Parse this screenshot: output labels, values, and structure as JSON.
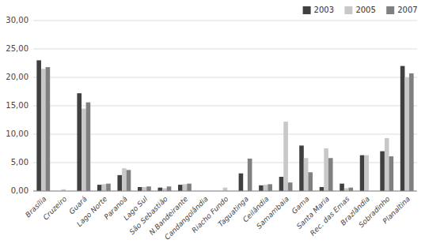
{
  "chart_data": {
    "type": "bar",
    "categories": [
      "Brasília",
      "Cruzeiro",
      "Guará",
      "Lago Norte",
      "Paranoá",
      "Lago Sul",
      "São Sebastião",
      "N.Bandeirante",
      "Candangolândia",
      "Riacho Fundo",
      "Taguatinga",
      "Ceilândia",
      "Samambaia",
      "Gama",
      "Santa Maria",
      "Rec. das Emas",
      "Brazlândia",
      "Sobradinho",
      "Planaltina"
    ],
    "series": [
      {
        "name": "2003",
        "color": "#404040",
        "values": [
          23.0,
          0.0,
          17.2,
          1.1,
          2.8,
          0.7,
          0.6,
          1.1,
          0.0,
          0.0,
          3.1,
          1.0,
          2.5,
          8.0,
          0.7,
          1.3,
          6.3,
          7.0,
          22.0
        ]
      },
      {
        "name": "2005",
        "color": "#c8c8c8",
        "values": [
          21.5,
          0.3,
          14.5,
          1.2,
          4.0,
          0.7,
          0.5,
          1.2,
          0.0,
          0.6,
          0.0,
          1.1,
          12.2,
          5.8,
          7.5,
          0.5,
          6.3,
          9.3,
          20.0
        ]
      },
      {
        "name": "2007",
        "color": "#808080",
        "values": [
          21.8,
          0.0,
          15.6,
          1.3,
          3.7,
          0.8,
          0.8,
          1.3,
          0.0,
          0.0,
          5.7,
          1.2,
          1.5,
          3.3,
          5.8,
          0.6,
          0.0,
          6.1,
          20.7
        ]
      }
    ],
    "ylim": [
      0,
      30
    ],
    "yticks": [
      {
        "value": 0,
        "label": "0,00"
      },
      {
        "value": 5,
        "label": "5,00"
      },
      {
        "value": 10,
        "label": "10,00"
      },
      {
        "value": 15,
        "label": "15,00"
      },
      {
        "value": 20,
        "label": "20,00"
      },
      {
        "value": 25,
        "label": "25,00"
      },
      {
        "value": 30,
        "label": "30,00"
      }
    ],
    "grid": true,
    "legend": "upper right"
  }
}
